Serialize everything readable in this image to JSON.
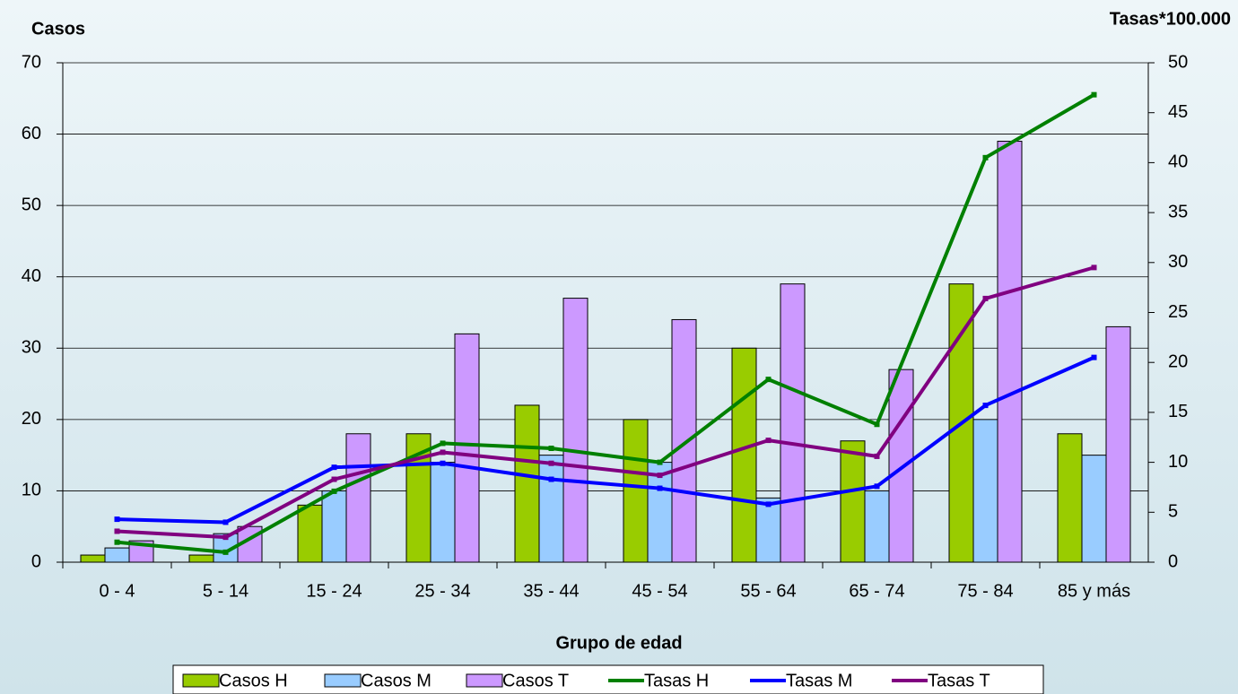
{
  "chart_data": {
    "type": "bar",
    "y_label": "Casos",
    "y2_label": "Tasas*100.000",
    "x_label": "Grupo de edad",
    "categories": [
      "0 - 4",
      "5 - 14",
      "15 - 24",
      "25 - 34",
      "35 - 44",
      "45 - 54",
      "55 - 64",
      "65 - 74",
      "75 - 84",
      "85 y más"
    ],
    "ylim": [
      0,
      70
    ],
    "yticks": [
      0,
      10,
      20,
      30,
      40,
      50,
      60,
      70
    ],
    "y2lim": [
      0,
      50
    ],
    "y2ticks": [
      0,
      5,
      10,
      15,
      20,
      25,
      30,
      35,
      40,
      45,
      50
    ],
    "grid": true,
    "legend": "bottom",
    "series": [
      {
        "name": "Casos H",
        "type": "bar",
        "color": "#99cc00",
        "values": [
          1,
          1,
          8,
          18,
          22,
          20,
          30,
          17,
          39,
          18
        ]
      },
      {
        "name": "Casos M",
        "type": "bar",
        "color": "#99ccff",
        "values": [
          2,
          4,
          10,
          14,
          15,
          14,
          9,
          10,
          20,
          15
        ]
      },
      {
        "name": "Casos T",
        "type": "bar",
        "color": "#cc99ff",
        "values": [
          3,
          5,
          18,
          32,
          37,
          34,
          39,
          27,
          59,
          33
        ]
      },
      {
        "name": "Tasas H",
        "type": "line",
        "axis": "y2",
        "color": "#008000",
        "values": [
          2,
          1,
          7.1,
          11.9,
          11.4,
          10,
          18.3,
          13.8,
          40.5,
          46.8
        ]
      },
      {
        "name": "Tasas M",
        "type": "line",
        "axis": "y2",
        "color": "#0000ff",
        "values": [
          4.3,
          4,
          9.5,
          9.9,
          8.3,
          7.4,
          5.8,
          7.6,
          15.7,
          20.5
        ]
      },
      {
        "name": "Tasas T",
        "type": "line",
        "axis": "y2",
        "color": "#800080",
        "values": [
          3.1,
          2.5,
          8.3,
          11,
          9.9,
          8.7,
          12.2,
          10.6,
          26.4,
          29.5
        ]
      }
    ]
  }
}
